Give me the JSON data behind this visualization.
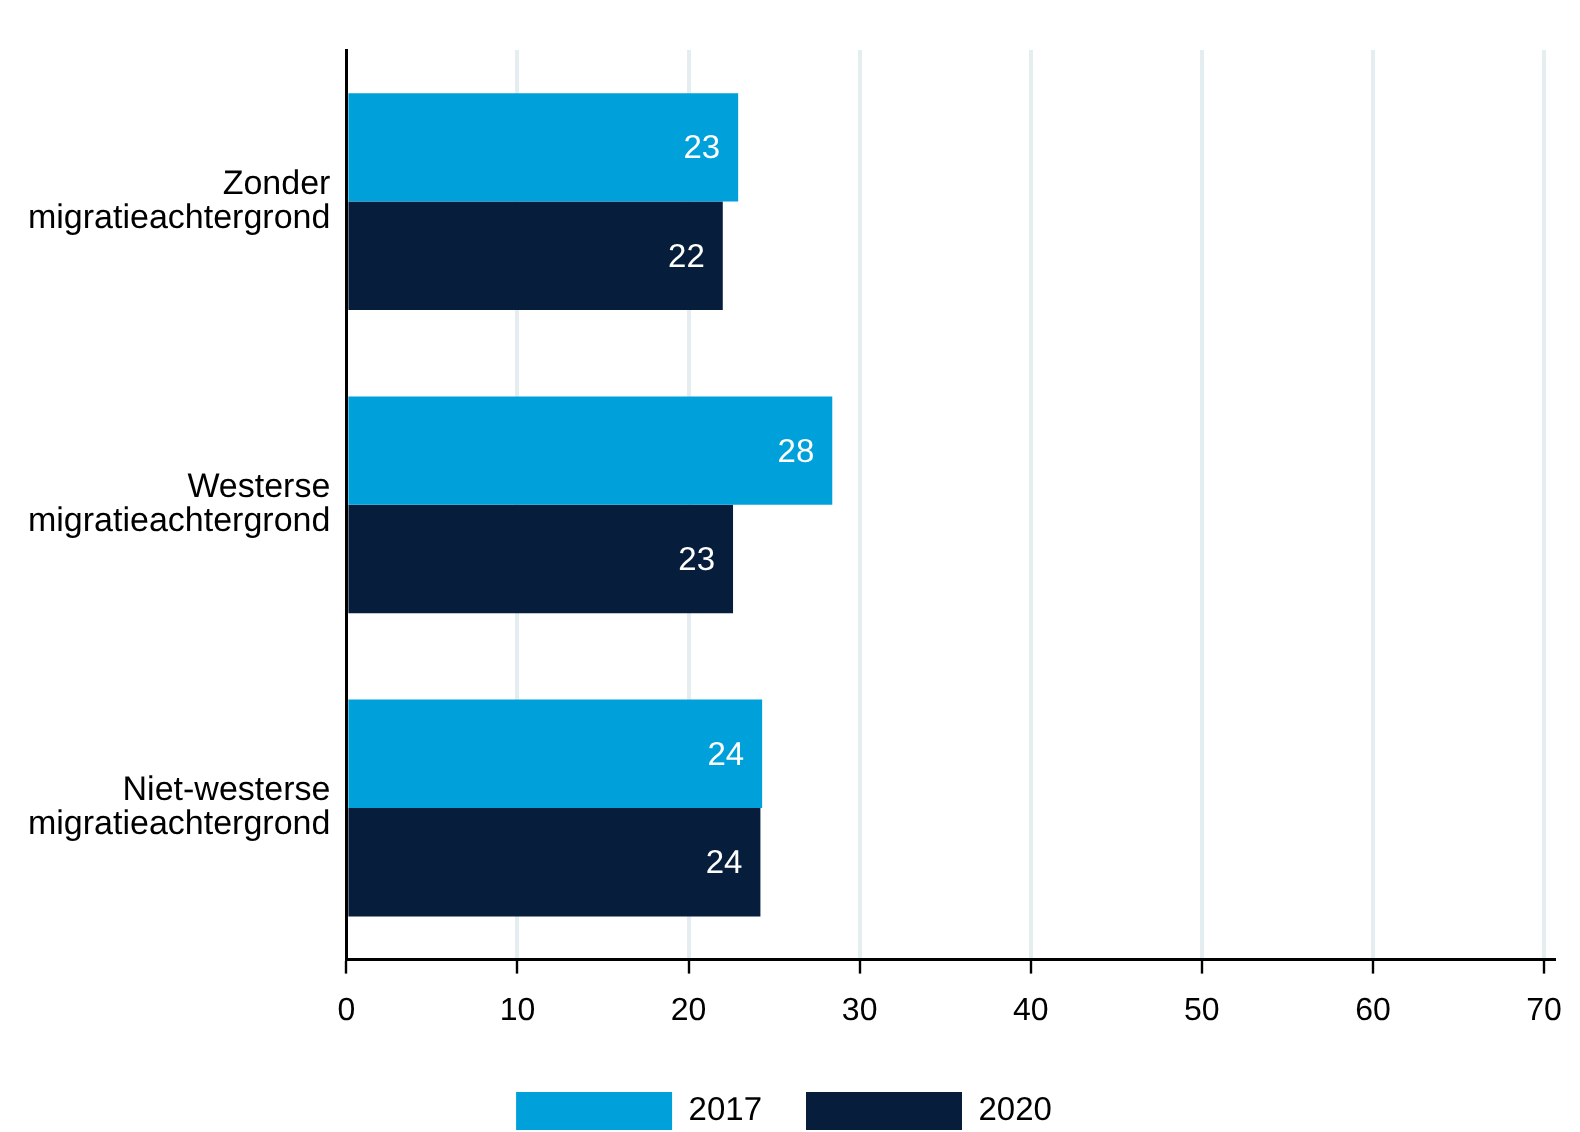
{
  "chart_data": {
    "type": "bar",
    "orientation": "horizontal",
    "categories": [
      "Zonder migratieachtergrond",
      "Westerse migratieachtergrond",
      "Niet-westerse migratieachtergrond"
    ],
    "series": [
      {
        "name": "2017",
        "color": "#00a1da",
        "values": [
          22.9,
          28.4,
          24.3
        ],
        "value_labels": [
          "23",
          "28",
          "24"
        ]
      },
      {
        "name": "2020",
        "color": "#061d3b",
        "values": [
          22.0,
          22.6,
          24.2
        ],
        "value_labels": [
          "22",
          "23",
          "24"
        ]
      }
    ],
    "xlim": [
      0,
      70.6
    ],
    "xticks": [
      0,
      10,
      20,
      30,
      40,
      50,
      60,
      70
    ],
    "grid": "x",
    "legend": "bottom"
  }
}
